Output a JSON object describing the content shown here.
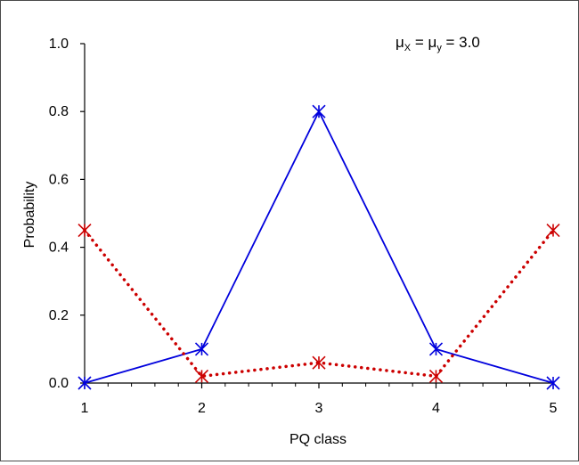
{
  "chart_data": {
    "type": "line",
    "title": "",
    "xlabel": "PQ class",
    "ylabel": "Probability",
    "xlim": [
      1,
      5
    ],
    "ylim": [
      0,
      1.0
    ],
    "x_ticks": [
      "1",
      "2",
      "3",
      "4",
      "5"
    ],
    "y_ticks": [
      "0.0",
      "0.2",
      "0.4",
      "0.6",
      "0.8",
      "1.0"
    ],
    "grid": false,
    "legend": "none",
    "annotation": {
      "mu": "μ",
      "sub_x": "X",
      "eq1": " = ",
      "sub_y": "y",
      "eq2": " = 3.0"
    },
    "x": [
      1,
      2,
      3,
      4,
      5
    ],
    "series": [
      {
        "values": [
          0.0,
          0.1,
          0.8,
          0.1,
          0.0
        ],
        "color": "#0000dd",
        "line_style": "solid",
        "marker": "star"
      },
      {
        "values": [
          0.45,
          0.02,
          0.06,
          0.02,
          0.45
        ],
        "color": "#cc0000",
        "line_style": "dotted",
        "marker": "star"
      }
    ]
  }
}
